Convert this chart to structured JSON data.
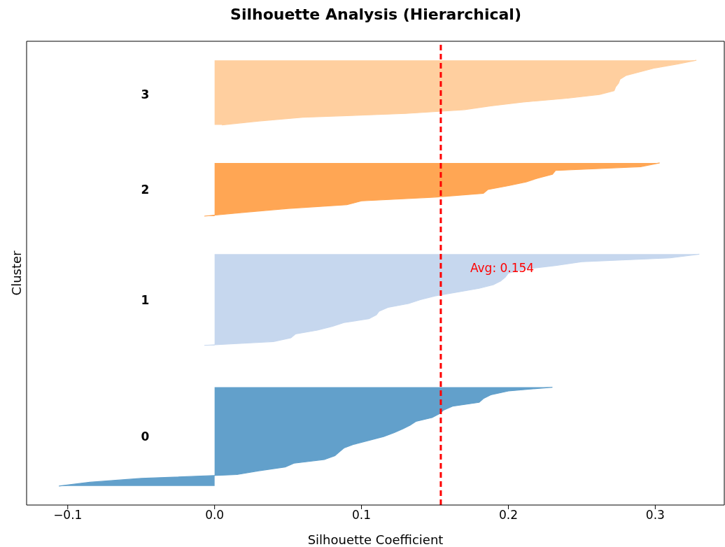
{
  "chart_data": {
    "type": "area",
    "orientation": "horizontal",
    "title": "Silhouette Analysis (Hierarchical)",
    "xlabel": "Silhouette Coefficient",
    "ylabel": "Cluster",
    "categories": [
      null,
      null,
      null,
      null,
      null,
      null,
      null,
      null,
      null,
      null,
      null,
      null,
      null,
      null,
      null,
      null,
      null,
      null,
      null,
      null,
      null,
      null,
      null,
      null,
      null,
      null,
      null,
      null,
      null,
      null,
      null,
      null,
      null,
      null,
      null,
      null,
      null,
      null,
      null,
      null,
      null,
      null,
      null,
      null,
      null,
      null,
      null,
      null,
      null,
      null,
      null,
      null,
      null,
      null,
      null,
      null,
      null,
      null,
      null,
      null,
      null,
      null,
      null,
      null,
      null,
      null,
      null,
      null,
      null,
      null,
      null,
      null,
      null,
      null,
      null,
      null,
      null,
      null,
      null,
      null,
      null,
      null,
      null,
      null,
      null,
      null,
      null,
      null,
      null,
      null,
      null,
      null,
      null,
      null,
      null,
      null,
      null,
      null,
      null,
      null,
      null,
      null,
      null,
      null,
      null,
      null,
      null,
      null,
      null,
      null,
      null,
      null,
      null,
      null,
      null,
      null,
      null,
      null,
      null,
      null,
      null,
      null,
      null
    ],
    "series": [
      {
        "color": "#62a0cb",
        "values": [
          null,
          null,
          null,
          null,
          null,
          null,
          null,
          null,
          null,
          null,
          null,
          null,
          null,
          null,
          null,
          null,
          null,
          null,
          null,
          null,
          null,
          null,
          null,
          null,
          null,
          null,
          null,
          null,
          null,
          null,
          null,
          null,
          null,
          null,
          null,
          null,
          null,
          null,
          null,
          null,
          null,
          null,
          null,
          null,
          null,
          null,
          null,
          null,
          null,
          null,
          null,
          null,
          null,
          null,
          null,
          null,
          null,
          null,
          null,
          null,
          null,
          null,
          null,
          null,
          null,
          null,
          null,
          null,
          null,
          null,
          null,
          null,
          null,
          null,
          null,
          null,
          null,
          null,
          null,
          null,
          null,
          null,
          null,
          null,
          null,
          null,
          null,
          null,
          null,
          null,
          null,
          0.23,
          0.2,
          0.188,
          0.183,
          0.18,
          0.162,
          0.156,
          0.153,
          0.148,
          0.137,
          0.133,
          0.128,
          0.122,
          0.115,
          0.105,
          0.095,
          0.088,
          0.085,
          0.082,
          0.075,
          0.054,
          0.048,
          0.03,
          0.015,
          -0.05,
          -0.085,
          -0.106,
          null,
          null,
          null,
          null,
          null
        ]
      },
      {
        "color": "#c6d7ee",
        "values": [
          null,
          null,
          null,
          null,
          null,
          null,
          null,
          null,
          null,
          null,
          null,
          null,
          null,
          null,
          null,
          null,
          null,
          null,
          null,
          null,
          null,
          null,
          null,
          null,
          null,
          null,
          null,
          null,
          null,
          null,
          null,
          null,
          null,
          null,
          null,
          null,
          null,
          null,
          null,
          null,
          null,
          null,
          null,
          null,
          null,
          null,
          null,
          null,
          null,
          null,
          null,
          null,
          null,
          null,
          null,
          null,
          0.33,
          0.31,
          0.25,
          0.232,
          0.21,
          0.2,
          0.198,
          0.195,
          0.19,
          0.18,
          0.165,
          0.15,
          0.14,
          0.132,
          0.118,
          0.112,
          0.11,
          0.105,
          0.088,
          0.08,
          0.07,
          0.055,
          0.052,
          0.04,
          -0.007,
          null,
          null,
          null,
          null,
          null,
          null,
          null,
          null,
          null,
          null,
          null,
          null,
          null,
          null,
          null,
          null,
          null,
          null,
          null,
          null,
          null,
          null,
          null,
          null,
          null,
          null,
          null,
          null,
          null,
          null,
          null,
          null,
          null,
          null,
          null,
          null,
          null,
          null,
          null,
          null,
          null,
          null
        ]
      },
      {
        "color": "#ffa654",
        "values": [
          null,
          null,
          null,
          null,
          null,
          null,
          null,
          null,
          null,
          null,
          null,
          null,
          null,
          null,
          null,
          null,
          null,
          null,
          null,
          null,
          null,
          null,
          null,
          null,
          null,
          null,
          null,
          null,
          null,
          null,
          null,
          null,
          0.303,
          0.29,
          0.232,
          0.23,
          0.22,
          0.212,
          0.2,
          0.186,
          0.183,
          0.15,
          0.1,
          0.09,
          0.05,
          0.02,
          -0.007,
          null,
          null,
          null,
          null,
          null,
          null,
          null,
          null,
          null,
          null,
          null,
          null,
          null,
          null,
          null,
          null,
          null,
          null,
          null,
          null,
          null,
          null,
          null,
          null,
          null,
          null,
          null,
          null,
          null,
          null,
          null,
          null,
          null,
          null,
          null,
          null,
          null,
          null,
          null,
          null,
          null,
          null,
          null,
          null,
          null,
          null,
          null,
          null,
          null,
          null,
          null,
          null,
          null,
          null,
          null,
          null,
          null,
          null,
          null,
          null,
          null,
          null,
          null,
          null,
          null,
          null,
          null,
          null,
          null,
          null,
          null,
          null,
          null,
          null,
          null,
          null
        ]
      },
      {
        "color": "#ffcf9f",
        "values": [
          null,
          null,
          null,
          null,
          null,
          0.328,
          0.315,
          0.3,
          0.29,
          0.28,
          0.276,
          0.275,
          0.273,
          0.272,
          0.262,
          0.24,
          0.21,
          0.188,
          0.17,
          0.13,
          0.06,
          0.03,
          0.005,
          null,
          null,
          null,
          null,
          null,
          null,
          null,
          null,
          null,
          null,
          null,
          null,
          null,
          null,
          null,
          null,
          null,
          null,
          null,
          null,
          null,
          null,
          null,
          null,
          null,
          null,
          null,
          null,
          null,
          null,
          null,
          null,
          null,
          null,
          null,
          null,
          null,
          null,
          null,
          null,
          null,
          null,
          null,
          null,
          null,
          null,
          null,
          null,
          null,
          null,
          null,
          null,
          null,
          null,
          null,
          null,
          null,
          null,
          null,
          null,
          null,
          null,
          null,
          null,
          null,
          null,
          null,
          null,
          null,
          null,
          null,
          null,
          null,
          null,
          null,
          null,
          null,
          null,
          null,
          null,
          null,
          null,
          null,
          null,
          null,
          null,
          null,
          null,
          null,
          null,
          null,
          null,
          null,
          null,
          null,
          null,
          null,
          null,
          null,
          null
        ]
      }
    ],
    "xlim": [
      -0.128,
      0.347
    ],
    "xticks": [
      {
        "value": -0.1,
        "label": "−0.1"
      },
      {
        "value": 0,
        "label": "0.0"
      },
      0.1,
      0.2,
      0.3
    ],
    "ref_lines": [
      {
        "axis": "x",
        "value": 0.154,
        "label": "Avg: 0.154",
        "color": "#ff0000",
        "line_style": "dashed"
      }
    ],
    "annotations": [
      "0",
      "1",
      "2",
      "3"
    ],
    "tick_labels": "x",
    "grid": false,
    "legend": false
  }
}
